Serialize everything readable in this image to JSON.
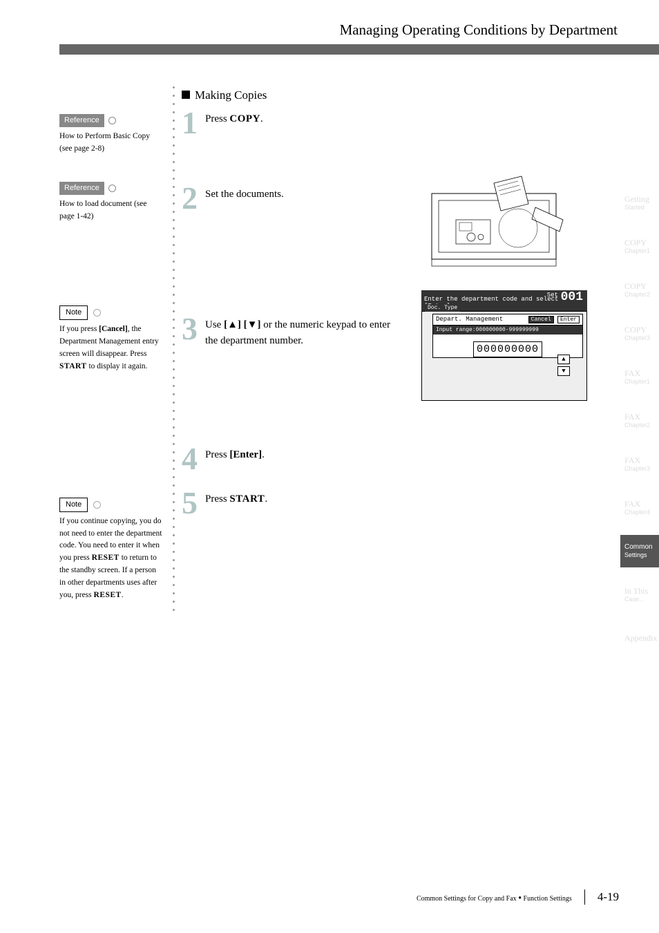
{
  "header": {
    "title": "Managing Operating Conditions by Department"
  },
  "leftCol": {
    "ref1": {
      "label": "Reference",
      "text": "How to Perform Basic Copy (see page 2-8)"
    },
    "ref2": {
      "label": "Reference",
      "text": "How to load document (see page 1-42)"
    },
    "note1": {
      "label": "Note",
      "text_a": "If you press ",
      "bold_a": "[Cancel]",
      "text_b": ", the Department Management entry screen will disappear. Press ",
      "sc_b": "START",
      "text_c": " to display it again."
    },
    "note2": {
      "label": "Note",
      "text_a": "If you continue copying, you do not need to enter the department code. You need to enter it when you press ",
      "sc_a": "RESET",
      "text_b": " to return to the standby screen. If a person in other departments uses after you, press ",
      "sc_b": "RESET",
      "text_c": "."
    }
  },
  "main": {
    "sectionTitle": "Making Copies",
    "step1": {
      "num": "1",
      "pre": "Press ",
      "sc": "COPY",
      "post": "."
    },
    "step2": {
      "num": "2",
      "text": "Set the documents."
    },
    "step3": {
      "num": "3",
      "pre": "Use ",
      "bold": "[▲] [▼]",
      "post": " or the numeric keypad to enter the department number."
    },
    "step4": {
      "num": "4",
      "pre": "Press ",
      "bold": "[Enter]",
      "post": "."
    },
    "step5": {
      "num": "5",
      "pre": "Press ",
      "sc": "START",
      "post": "."
    }
  },
  "lcd": {
    "set": "Set",
    "code": "001",
    "prompt": "Enter the department code and select [Enter].",
    "tab": "Doc. Type",
    "dept": "Depart. Management",
    "cancel": "Cancel",
    "enter": "Enter",
    "range": "Input range:000000000-999999999",
    "value": "000000000",
    "up": "▲",
    "down": "▼"
  },
  "tabs": {
    "t1a": "Getting",
    "t1b": "Started",
    "t2a": "COPY",
    "t2b": "Chapter1",
    "t3a": "COPY",
    "t3b": "Chapter2",
    "t4a": "COPY",
    "t4b": "Chapter3",
    "t5a": "FAX",
    "t5b": "Chapter1",
    "t6a": "FAX",
    "t6b": "Chapter2",
    "t7a": "FAX",
    "t7b": "Chapter3",
    "t8a": "FAX",
    "t8b": "Chapter4",
    "t9a": "Common",
    "t9b": "Settings",
    "t10a": "In This",
    "t10b": "Case...",
    "t11a": "Appendix"
  },
  "footer": {
    "text_a": "Common Settings for Copy and Fax",
    "text_b": "Function Settings",
    "page": "4-19"
  }
}
